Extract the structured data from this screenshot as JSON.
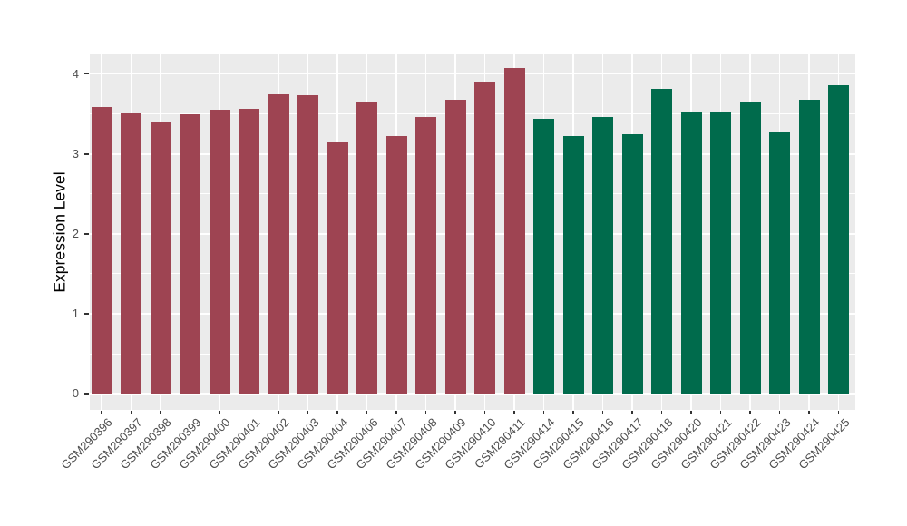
{
  "chart_data": {
    "type": "bar",
    "title": "",
    "xlabel": "",
    "ylabel": "Expression Level",
    "ylim": [
      0,
      4.26
    ],
    "yticks": [
      0,
      1,
      2,
      3,
      4
    ],
    "yticks_minor": [
      0.5,
      1.5,
      2.5,
      3.5
    ],
    "grid": "on",
    "legend": "none",
    "panel_background": "#EBEBEB",
    "grid_color": "#FFFFFF",
    "axis_text_color": "#4D4D4D",
    "tick_color": "#333333",
    "group_colors": {
      "left_group": "#9E4452",
      "right_group": "#006B4C"
    },
    "categories": [
      "GSM290396",
      "GSM290397",
      "GSM290398",
      "GSM290399",
      "GSM290400",
      "GSM290401",
      "GSM290402",
      "GSM290403",
      "GSM290404",
      "GSM290406",
      "GSM290407",
      "GSM290408",
      "GSM290409",
      "GSM290410",
      "GSM290411",
      "GSM290414",
      "GSM290415",
      "GSM290416",
      "GSM290417",
      "GSM290418",
      "GSM290420",
      "GSM290421",
      "GSM290422",
      "GSM290423",
      "GSM290424",
      "GSM290425"
    ],
    "values": [
      3.59,
      3.51,
      3.4,
      3.5,
      3.55,
      3.57,
      3.75,
      3.73,
      3.14,
      3.65,
      3.22,
      3.46,
      3.68,
      3.9,
      4.08,
      3.44,
      3.22,
      3.46,
      3.25,
      3.82,
      3.53,
      3.53,
      3.65,
      3.28,
      3.68,
      3.86
    ],
    "bar_colors": [
      "#9E4452",
      "#9E4452",
      "#9E4452",
      "#9E4452",
      "#9E4452",
      "#9E4452",
      "#9E4452",
      "#9E4452",
      "#9E4452",
      "#9E4452",
      "#9E4452",
      "#9E4452",
      "#9E4452",
      "#9E4452",
      "#9E4452",
      "#006B4C",
      "#006B4C",
      "#006B4C",
      "#006B4C",
      "#006B4C",
      "#006B4C",
      "#006B4C",
      "#006B4C",
      "#006B4C",
      "#006B4C",
      "#006B4C"
    ]
  }
}
